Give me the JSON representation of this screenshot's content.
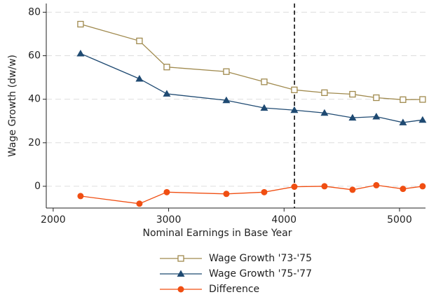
{
  "chart_data": {
    "type": "line",
    "xlabel": "Nominal Earnings in Base Year",
    "ylabel": "Wage Growth (dw/w)",
    "x": [
      2237,
      2747,
      2984,
      3500,
      3828,
      4089,
      4350,
      4593,
      4799,
      5030,
      5200
    ],
    "series": [
      {
        "name": "Wage Growth '73-'75",
        "color": "#a08a4e",
        "marker": "square-open",
        "values": [
          74.5,
          66.8,
          54.8,
          52.7,
          48,
          44.3,
          43,
          42.3,
          40.7,
          39.8,
          39.9
        ]
      },
      {
        "name": "Wage Growth '75-'77",
        "color": "#1f4a72",
        "marker": "triangle",
        "values": [
          61,
          49.4,
          42.5,
          39.5,
          36,
          35,
          33.7,
          31.5,
          32,
          29.3,
          30.5
        ]
      },
      {
        "name": "Difference",
        "color": "#f04e12",
        "marker": "circle",
        "values": [
          -4.5,
          -8,
          -2.7,
          -3.5,
          -2.7,
          -0.2,
          0,
          -1.6,
          0.5,
          -1.2,
          0
        ]
      }
    ],
    "xlim": [
      1940,
      5225
    ],
    "xticks": [
      2000,
      3000,
      4000,
      5000
    ],
    "ylim": [
      -10,
      84
    ],
    "yticks": [
      0,
      20,
      40,
      60,
      80
    ],
    "grid": true,
    "vline": 4090,
    "legend": "bottom"
  }
}
